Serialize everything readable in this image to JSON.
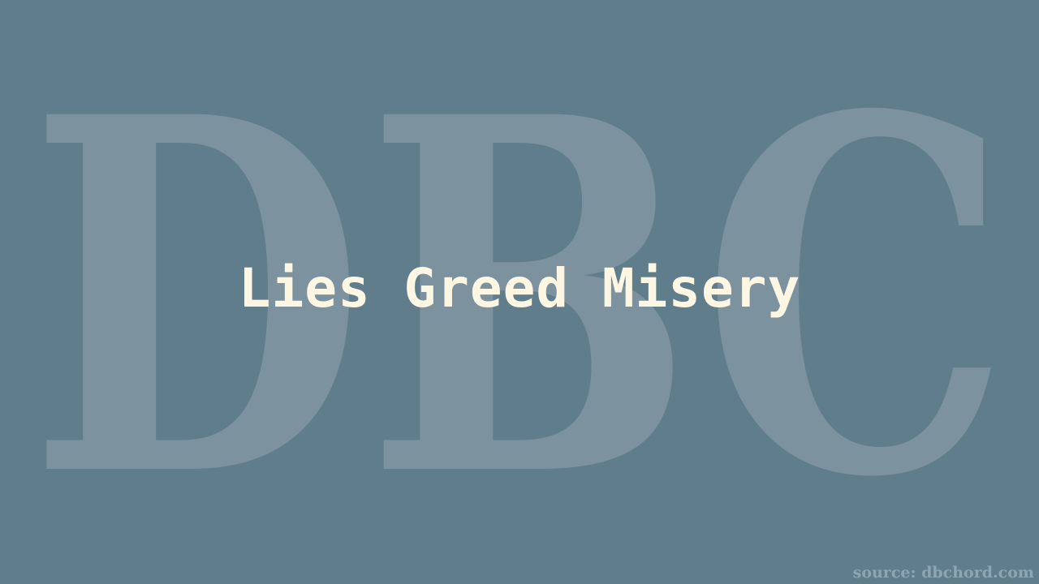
{
  "watermark": {
    "text": "DBC",
    "color": "#7c929f"
  },
  "title": "Lies Greed Misery",
  "source": "source: dbchord.com",
  "colors": {
    "background": "#607d8b",
    "title": "#fdf6e3",
    "source": "#8ea6b2"
  }
}
